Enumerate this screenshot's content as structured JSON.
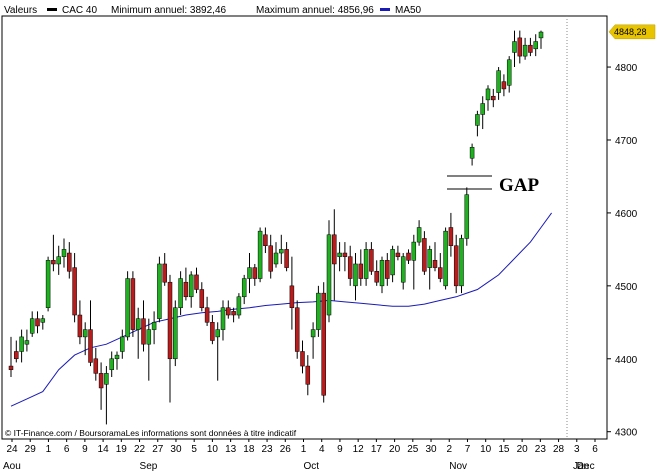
{
  "chart_data": {
    "type": "candlestick",
    "legend": {
      "prefix": "Valeurs",
      "series_name": "CAC 40",
      "min_label": "Minimum annuel: 3892,46",
      "max_label": "Maximum annuel: 4856,96",
      "ma_name": "MA50"
    },
    "ylim": [
      4290,
      4870
    ],
    "y_ticks": [
      4300,
      4400,
      4500,
      4600,
      4700,
      4800
    ],
    "last_value": 4848.28,
    "last_value_label": "4848,28",
    "x_tick_labels": [
      "24",
      "29",
      "1",
      "6",
      "9",
      "14",
      "19",
      "22",
      "27",
      "30",
      "5",
      "10",
      "13",
      "18",
      "23",
      "26",
      "1",
      "4",
      "9",
      "12",
      "17",
      "20",
      "25",
      "30",
      "2",
      "7",
      "10",
      "15",
      "20",
      "23",
      "28",
      "3",
      "6"
    ],
    "month_labels": [
      "Aou",
      "Sep",
      "Oct",
      "Nov",
      "Dec",
      "Jan"
    ],
    "footer": "© IT-Finance.com / BoursoramaLes informations sont données à titre indicatif",
    "annotation": "GAP",
    "candles": [
      [
        4390,
        4430,
        4375,
        4385
      ],
      [
        4410,
        4425,
        4395,
        4400
      ],
      [
        4410,
        4440,
        4395,
        4430
      ],
      [
        4420,
        4440,
        4410,
        4425
      ],
      [
        4435,
        4465,
        4430,
        4455
      ],
      [
        4455,
        4465,
        4435,
        4445
      ],
      [
        4450,
        4460,
        4440,
        4455
      ],
      [
        4470,
        4540,
        4465,
        4535
      ],
      [
        4535,
        4570,
        4520,
        4530
      ],
      [
        4530,
        4555,
        4515,
        4540
      ],
      [
        4540,
        4565,
        4525,
        4550
      ],
      [
        4545,
        4560,
        4510,
        4520
      ],
      [
        4525,
        4545,
        4450,
        4460
      ],
      [
        4460,
        4480,
        4420,
        4430
      ],
      [
        4430,
        4450,
        4405,
        4440
      ],
      [
        4440,
        4480,
        4390,
        4395
      ],
      [
        4400,
        4415,
        4370,
        4380
      ],
      [
        4380,
        4395,
        4330,
        4360
      ],
      [
        4365,
        4390,
        4310,
        4380
      ],
      [
        4385,
        4410,
        4375,
        4400
      ],
      [
        4400,
        4410,
        4385,
        4405
      ],
      [
        4410,
        4440,
        4400,
        4430
      ],
      [
        4430,
        4520,
        4425,
        4510
      ],
      [
        4510,
        4520,
        4430,
        4440
      ],
      [
        4440,
        4470,
        4400,
        4455
      ],
      [
        4455,
        4480,
        4410,
        4420
      ],
      [
        4420,
        4455,
        4370,
        4440
      ],
      [
        4440,
        4465,
        4420,
        4450
      ],
      [
        4455,
        4540,
        4450,
        4530
      ],
      [
        4530,
        4545,
        4500,
        4505
      ],
      [
        4505,
        4515,
        4340,
        4400
      ],
      [
        4400,
        4480,
        4390,
        4470
      ],
      [
        4470,
        4520,
        4460,
        4510
      ],
      [
        4505,
        4525,
        4480,
        4485
      ],
      [
        4485,
        4520,
        4470,
        4515
      ],
      [
        4515,
        4525,
        4490,
        4495
      ],
      [
        4495,
        4505,
        4465,
        4470
      ],
      [
        4470,
        4485,
        4445,
        4450
      ],
      [
        4450,
        4460,
        4420,
        4425
      ],
      [
        4430,
        4450,
        4370,
        4440
      ],
      [
        4440,
        4480,
        4425,
        4470
      ],
      [
        4470,
        4480,
        4455,
        4460
      ],
      [
        4465,
        4470,
        4450,
        4460
      ],
      [
        4460,
        4490,
        4455,
        4485
      ],
      [
        4485,
        4515,
        4475,
        4510
      ],
      [
        4510,
        4545,
        4490,
        4525
      ],
      [
        4525,
        4530,
        4500,
        4510
      ],
      [
        4510,
        4580,
        4505,
        4575
      ],
      [
        4570,
        4580,
        4545,
        4555
      ],
      [
        4555,
        4570,
        4510,
        4520
      ],
      [
        4530,
        4560,
        4525,
        4545
      ],
      [
        4545,
        4570,
        4530,
        4550
      ],
      [
        4550,
        4560,
        4520,
        4525
      ],
      [
        4500,
        4540,
        4440,
        4470
      ],
      [
        4470,
        4480,
        4400,
        4410
      ],
      [
        4410,
        4425,
        4380,
        4390
      ],
      [
        4390,
        4405,
        4350,
        4365
      ],
      [
        4430,
        4450,
        4400,
        4440
      ],
      [
        4440,
        4500,
        4430,
        4490
      ],
      [
        4490,
        4505,
        4340,
        4350
      ],
      [
        4460,
        4590,
        4450,
        4570
      ],
      [
        4570,
        4605,
        4480,
        4530
      ],
      [
        4540,
        4560,
        4520,
        4545
      ],
      [
        4545,
        4560,
        4520,
        4540
      ],
      [
        4540,
        4555,
        4500,
        4510
      ],
      [
        4500,
        4545,
        4480,
        4530
      ],
      [
        4530,
        4550,
        4500,
        4510
      ],
      [
        4510,
        4560,
        4500,
        4550
      ],
      [
        4550,
        4560,
        4515,
        4520
      ],
      [
        4520,
        4535,
        4500,
        4505
      ],
      [
        4500,
        4540,
        4490,
        4535
      ],
      [
        4535,
        4545,
        4500,
        4510
      ],
      [
        4515,
        4555,
        4505,
        4550
      ],
      [
        4545,
        4555,
        4535,
        4540
      ],
      [
        4505,
        4545,
        4495,
        4540
      ],
      [
        4545,
        4550,
        4530,
        4535
      ],
      [
        4535,
        4570,
        4495,
        4560
      ],
      [
        4560,
        4590,
        4555,
        4580
      ],
      [
        4565,
        4575,
        4515,
        4520
      ],
      [
        4525,
        4555,
        4495,
        4550
      ],
      [
        4535,
        4560,
        4520,
        4525
      ],
      [
        4525,
        4545,
        4505,
        4510
      ],
      [
        4500,
        4580,
        4495,
        4575
      ],
      [
        4580,
        4600,
        4540,
        4555
      ],
      [
        4555,
        4570,
        4490,
        4500
      ],
      [
        4500,
        4570,
        4490,
        4565
      ],
      [
        4565,
        4635,
        4555,
        4625
      ],
      [
        4675,
        4695,
        4665,
        4690
      ],
      [
        4720,
        4740,
        4705,
        4735
      ],
      [
        4735,
        4760,
        4715,
        4750
      ],
      [
        4755,
        4775,
        4740,
        4770
      ],
      [
        4760,
        4770,
        4745,
        4755
      ],
      [
        4765,
        4800,
        4755,
        4795
      ],
      [
        4780,
        4790,
        4760,
        4770
      ],
      [
        4775,
        4815,
        4765,
        4810
      ],
      [
        4820,
        4850,
        4800,
        4835
      ],
      [
        4840,
        4850,
        4805,
        4815
      ],
      [
        4815,
        4840,
        4810,
        4830
      ],
      [
        4830,
        4840,
        4815,
        4820
      ],
      [
        4825,
        4845,
        4815,
        4835
      ],
      [
        4840,
        4850,
        4825,
        4848
      ]
    ],
    "ma50": [
      [
        0,
        4335
      ],
      [
        3,
        4345
      ],
      [
        6,
        4355
      ],
      [
        9,
        4385
      ],
      [
        12,
        4405
      ],
      [
        15,
        4415
      ],
      [
        18,
        4420
      ],
      [
        21,
        4430
      ],
      [
        24,
        4440
      ],
      [
        27,
        4450
      ],
      [
        30,
        4455
      ],
      [
        33,
        4460
      ],
      [
        36,
        4463
      ],
      [
        39,
        4465
      ],
      [
        42,
        4468
      ],
      [
        45,
        4470
      ],
      [
        48,
        4473
      ],
      [
        51,
        4475
      ],
      [
        54,
        4477
      ],
      [
        57,
        4478
      ],
      [
        60,
        4480
      ],
      [
        63,
        4478
      ],
      [
        66,
        4476
      ],
      [
        69,
        4474
      ],
      [
        72,
        4472
      ],
      [
        75,
        4472
      ],
      [
        78,
        4475
      ],
      [
        81,
        4480
      ],
      [
        84,
        4485
      ],
      [
        86,
        4490
      ],
      [
        88,
        4495
      ],
      [
        90,
        4505
      ],
      [
        92,
        4515
      ],
      [
        94,
        4530
      ],
      [
        96,
        4545
      ],
      [
        98,
        4560
      ],
      [
        100,
        4580
      ],
      [
        102,
        4600
      ]
    ]
  }
}
